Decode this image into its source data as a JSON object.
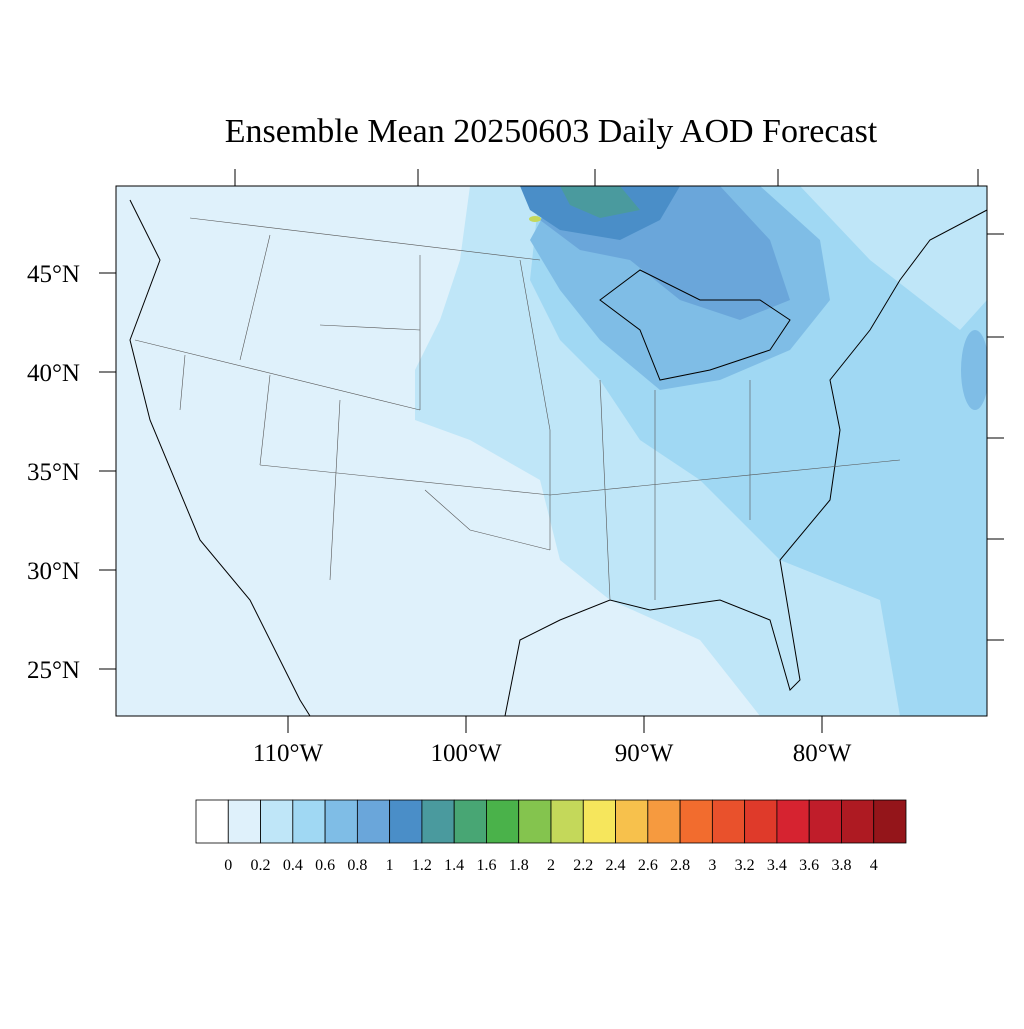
{
  "title": "Ensemble Mean 20250603 Daily AOD Forecast",
  "lat_ticks": [
    {
      "value": 45,
      "label": "45°N"
    },
    {
      "value": 40,
      "label": "40°N"
    },
    {
      "value": 35,
      "label": "35°N"
    },
    {
      "value": 30,
      "label": "30°N"
    },
    {
      "value": 25,
      "label": "25°N"
    }
  ],
  "lon_ticks": [
    {
      "value": -110,
      "label": "110°W"
    },
    {
      "value": -100,
      "label": "100°W"
    },
    {
      "value": -90,
      "label": "90°W"
    },
    {
      "value": -80,
      "label": "80°W"
    }
  ],
  "colorbar": {
    "levels": [
      0,
      0.2,
      0.4,
      0.6,
      0.8,
      1,
      1.2,
      1.4,
      1.6,
      1.8,
      2,
      2.2,
      2.4,
      2.6,
      2.8,
      3,
      3.2,
      3.4,
      3.6,
      3.8,
      4
    ],
    "colors": [
      "#ffffff",
      "#dff1fb",
      "#bfe6f8",
      "#a0d8f3",
      "#7fbde6",
      "#6aa6da",
      "#4a8ec8",
      "#4a9a9e",
      "#48a674",
      "#4ab24a",
      "#84c44e",
      "#c4d85a",
      "#f6e65c",
      "#f7c14c",
      "#f69a3f",
      "#f26c2e",
      "#e9512c",
      "#df3a2a",
      "#d62330",
      "#c01d2a",
      "#ae1a22",
      "#94151a"
    ]
  }
}
